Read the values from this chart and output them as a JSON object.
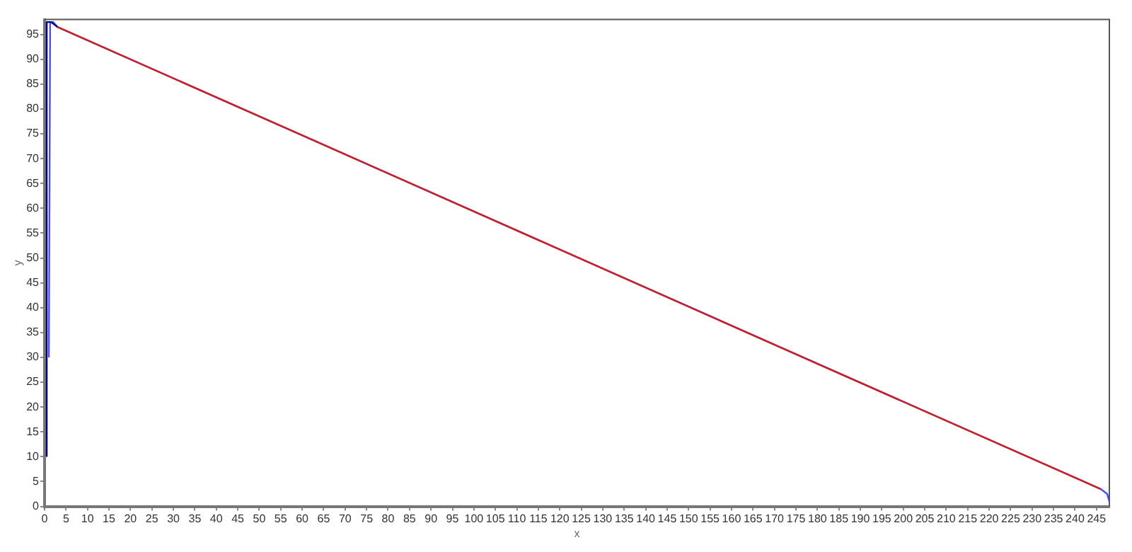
{
  "chart_data": {
    "type": "line",
    "xlabel": "x",
    "ylabel": "y",
    "xlim": [
      0,
      248
    ],
    "ylim": [
      0,
      98
    ],
    "xticks": [
      0,
      5,
      10,
      15,
      20,
      25,
      30,
      35,
      40,
      45,
      50,
      55,
      60,
      65,
      70,
      75,
      80,
      85,
      90,
      95,
      100,
      105,
      110,
      115,
      120,
      125,
      130,
      135,
      140,
      145,
      150,
      155,
      160,
      165,
      170,
      175,
      180,
      185,
      190,
      195,
      200,
      205,
      210,
      215,
      220,
      225,
      230,
      235,
      240,
      245
    ],
    "yticks": [
      0,
      5,
      10,
      15,
      20,
      25,
      30,
      35,
      40,
      45,
      50,
      55,
      60,
      65,
      70,
      75,
      80,
      85,
      90,
      95
    ],
    "grid": false,
    "legend": false,
    "marker": "none",
    "line_style": "solid",
    "series": [
      {
        "color": "#cc2020",
        "x": [
          3,
          60,
          120,
          180,
          246
        ],
        "values": [
          96.5,
          74.7,
          51.7,
          28.7,
          3.5
        ]
      },
      {
        "color": "#000080",
        "x": [
          0.5,
          0.5,
          1.5,
          3
        ],
        "values": [
          10,
          97.5,
          97.5,
          96.5
        ]
      },
      {
        "color": "#4a4aff",
        "x": [
          1,
          1.3,
          2,
          3,
          246,
          247.5,
          248
        ],
        "values": [
          30,
          97.5,
          97.5,
          96.5,
          3.5,
          2.5,
          1
        ]
      }
    ]
  }
}
